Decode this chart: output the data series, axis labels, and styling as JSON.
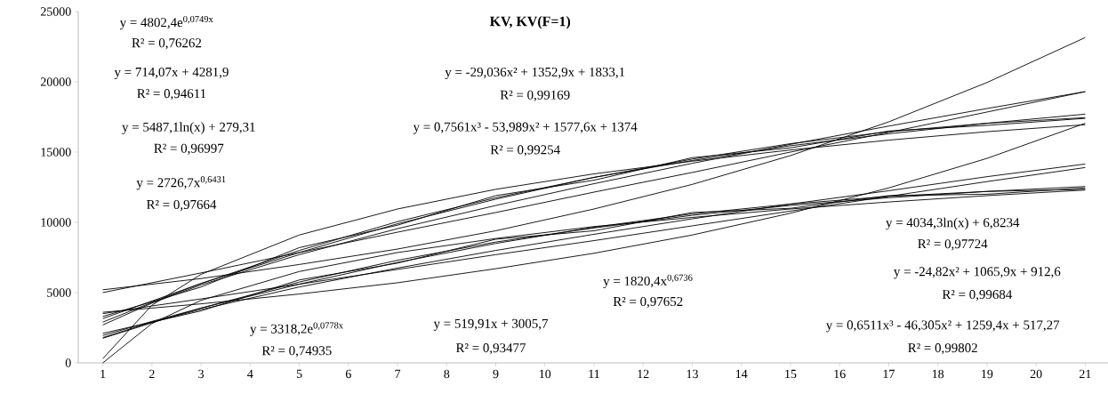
{
  "chart_data": {
    "type": "line",
    "title": "KV, KV(F=1)",
    "xlim": [
      0.5,
      21.5
    ],
    "xticks": [
      1,
      2,
      3,
      4,
      5,
      6,
      7,
      8,
      9,
      10,
      11,
      12,
      13,
      14,
      15,
      16,
      17,
      18,
      19,
      20,
      21
    ],
    "ylim": [
      0,
      25000
    ],
    "yticks": [
      0,
      5000,
      10000,
      15000,
      20000,
      25000
    ],
    "grid": false,
    "series": [
      {
        "color": "#000000",
        "x": [
          1,
          3,
          5,
          7,
          9,
          11,
          13,
          15,
          17,
          19,
          21
        ],
        "values": [
          3300,
          5400,
          8200,
          9800,
          11900,
          13000,
          14600,
          15300,
          16500,
          16900,
          17400
        ]
      },
      {
        "color": "#000000",
        "x": [
          1,
          3,
          5,
          7,
          9,
          11,
          13,
          15,
          17,
          19,
          21
        ],
        "values": [
          2100,
          3700,
          5900,
          7100,
          8800,
          9400,
          10700,
          11000,
          11900,
          12000,
          12450
        ]
      },
      {
        "color": "#000000",
        "x": [
          1,
          2,
          3,
          5,
          7,
          9,
          11,
          13,
          15,
          17,
          19,
          21
        ],
        "values": [
          5200,
          5600,
          6000,
          7000,
          8100,
          9400,
          10950,
          12700,
          14750,
          17150,
          19950,
          23150
        ]
      },
      {
        "color": "#000000",
        "x": [
          1,
          2,
          3,
          5,
          7,
          9,
          11,
          13,
          15,
          17,
          19,
          21
        ],
        "values": [
          5000,
          5700,
          6400,
          7850,
          9300,
          10700,
          12150,
          13550,
          15000,
          16400,
          17850,
          19300
        ]
      },
      {
        "color": "#000000",
        "x": [
          1,
          2,
          3,
          5,
          7,
          9,
          11,
          13,
          15,
          17,
          19,
          21
        ],
        "values": [
          300,
          4100,
          6300,
          9100,
          10950,
          12350,
          13450,
          14350,
          15150,
          15850,
          16450,
          16950
        ]
      },
      {
        "color": "#000000",
        "x": [
          1,
          2,
          3,
          5,
          7,
          9,
          11,
          13,
          15,
          17,
          19,
          21
        ],
        "values": [
          2700,
          4250,
          5550,
          7700,
          9550,
          11200,
          12750,
          14200,
          15550,
          16850,
          18100,
          19300
        ]
      },
      {
        "color": "#000000",
        "x": [
          1,
          2,
          3,
          5,
          7,
          9,
          11,
          13,
          15,
          17,
          19,
          21
        ],
        "values": [
          3150,
          4400,
          5650,
          7850,
          9900,
          11650,
          13200,
          14500,
          15600,
          16450,
          17050,
          17450
        ]
      },
      {
        "color": "#000000",
        "x": [
          1,
          2,
          3,
          5,
          7,
          9,
          11,
          13,
          15,
          17,
          19,
          21
        ],
        "values": [
          2900,
          4300,
          5650,
          8000,
          10050,
          11750,
          13200,
          14400,
          15450,
          16300,
          17050,
          17700
        ]
      },
      {
        "color": "#000000",
        "x": [
          1,
          2,
          3,
          5,
          7,
          9,
          11,
          13,
          15,
          17,
          19,
          21
        ],
        "values": [
          3600,
          3900,
          4200,
          4900,
          5700,
          6700,
          7800,
          9100,
          10650,
          12450,
          14550,
          17050
        ]
      },
      {
        "color": "#000000",
        "x": [
          1,
          2,
          3,
          5,
          7,
          9,
          11,
          13,
          15,
          17,
          19,
          21
        ],
        "values": [
          3500,
          4050,
          4550,
          5600,
          6650,
          7700,
          8700,
          9750,
          10800,
          11850,
          12900,
          13900
        ]
      },
      {
        "color": "#000000",
        "x": [
          1,
          2,
          3,
          5,
          7,
          9,
          11,
          13,
          15,
          17,
          19,
          21
        ],
        "values": [
          0,
          2800,
          4450,
          6500,
          7850,
          8850,
          9700,
          10350,
          10950,
          11450,
          11900,
          12300
        ]
      },
      {
        "color": "#000000",
        "x": [
          1,
          2,
          3,
          5,
          7,
          9,
          11,
          13,
          15,
          17,
          19,
          21
        ],
        "values": [
          1800,
          2900,
          3800,
          5400,
          6750,
          8000,
          9150,
          10250,
          11300,
          12250,
          13250,
          14150
        ]
      },
      {
        "color": "#000000",
        "x": [
          1,
          2,
          3,
          5,
          7,
          9,
          11,
          13,
          15,
          17,
          19,
          21
        ],
        "values": [
          1950,
          2950,
          3900,
          5600,
          7150,
          8500,
          9650,
          10600,
          11300,
          11850,
          12200,
          12350
        ]
      },
      {
        "color": "#000000",
        "x": [
          1,
          2,
          3,
          5,
          7,
          9,
          11,
          13,
          15,
          17,
          19,
          21
        ],
        "values": [
          1750,
          2850,
          3900,
          5750,
          7300,
          8600,
          9600,
          10500,
          11200,
          11750,
          12200,
          12550
        ]
      }
    ],
    "annotations": [
      "y = 4802,4e$^{0,0749x}$",
      "R² = 0,76262",
      "y = 714,07x + 4281,9",
      "R² = 0,94611",
      "y = 5487,1ln(x) + 279,31",
      "R² = 0,96997",
      "y = 2726,7x$^{0,6431}$",
      "R² = 0,97664",
      "y = -29,036x² + 1352,9x + 1833,1",
      "R² = 0,99169",
      "y = 0,7561x³ - 53,989x² + 1577,6x + 1374",
      "R² = 0,99254",
      "y = 4034,3ln(x) + 6,8234",
      "R² = 0,97724",
      "y = 1820,4x$^{0,6736}$",
      "R² = 0,97652",
      "y = -24,82x² + 1065,9x + 912,6",
      "R² = 0,99684",
      "y = 0,6511x³ - 46,305x² + 1259,4x + 517,27",
      "R² = 0,99802",
      "y = 3318,2e$^{0,0778x}$",
      "R² = 0,74935",
      "y = 519,91x + 3005,7",
      "R² = 0,93477"
    ]
  }
}
